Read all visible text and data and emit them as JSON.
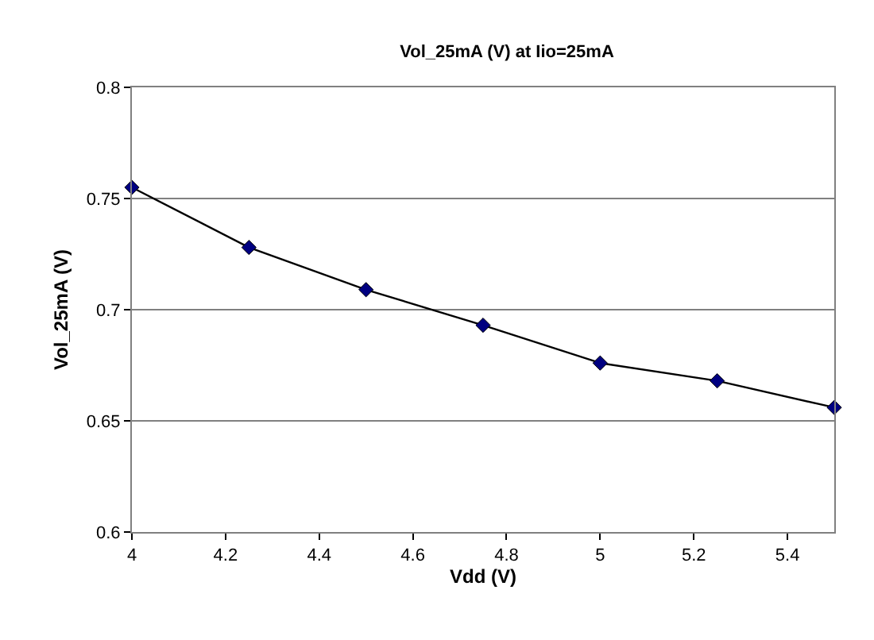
{
  "chart_data": {
    "type": "line",
    "title": "Vol_25mA (V) at Iio=25mA",
    "xlabel": "Vdd (V)",
    "ylabel": "Vol_25mA (V)",
    "x": [
      4,
      4.25,
      4.5,
      4.75,
      5,
      5.25,
      5.5
    ],
    "series": [
      {
        "color": "#000080",
        "values": [
          0.755,
          0.728,
          0.709,
          0.693,
          0.676,
          0.668,
          0.656
        ]
      }
    ],
    "xlim": [
      4,
      5.5
    ],
    "xticks": [
      4,
      4.2,
      4.4,
      4.6,
      4.8,
      5,
      5.2,
      5.4
    ],
    "ylim": [
      0.6,
      0.8
    ],
    "yticks": [
      0.6,
      0.65,
      0.7,
      0.75,
      0.8
    ],
    "grid": "y",
    "legend": false,
    "marker": "diamond",
    "line_style": "solid"
  }
}
